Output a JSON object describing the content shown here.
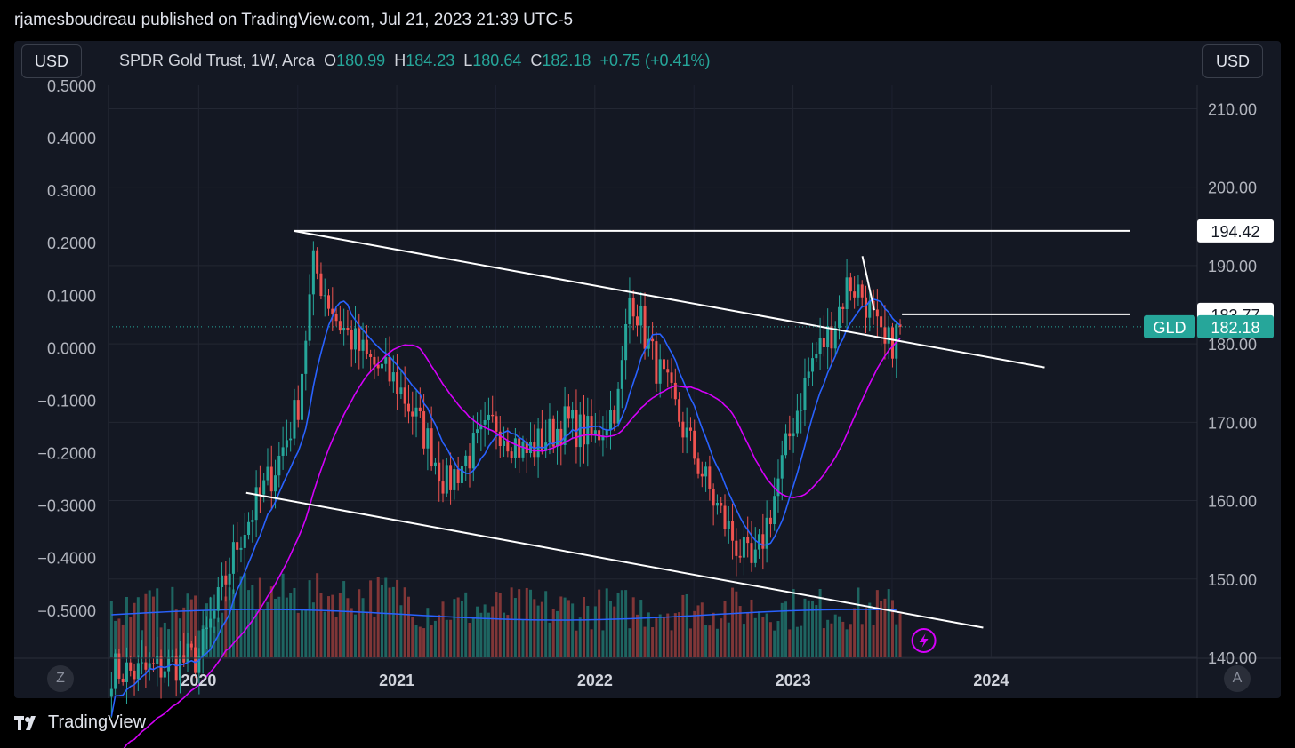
{
  "attribution": "rjamesboudreau published on TradingView.com, Jul 21, 2023 21:39 UTC-5",
  "left_unit": "USD",
  "right_unit": "USD",
  "legend": {
    "symbol": "SPDR Gold Trust, 1W, Arca",
    "o_label": "O",
    "o_value": "180.99",
    "h_label": "H",
    "h_value": "184.23",
    "l_label": "L",
    "l_value": "180.64",
    "c_label": "C",
    "c_value": "182.18",
    "change": "+0.75 (+0.41%)"
  },
  "z_button": "Z",
  "a_button": "A",
  "logo_text": "TradingView",
  "colors": {
    "up": "#26a69a",
    "down": "#ef5350",
    "ma_fast": "#2962ff",
    "ma_slow": "#d500f9",
    "volume_ma": "#2962ff",
    "trendline": "#ffffff",
    "current": "#26a69a"
  },
  "chart_data": {
    "type": "candlestick",
    "interval": "1W",
    "x_ticks": [
      "2020",
      "2021",
      "2022",
      "2023",
      "2024"
    ],
    "y_right_ticks": [
      "210.00",
      "200.00",
      "190.00",
      "180.00",
      "170.00",
      "160.00",
      "150.00",
      "140.00"
    ],
    "y_right_range": [
      140,
      213
    ],
    "y_left_ticks": [
      "0.5000",
      "0.4000",
      "0.3000",
      "0.2000",
      "0.1000",
      "0.0000",
      "−0.1000",
      "−0.2000",
      "−0.3000",
      "−0.4000",
      "−0.5000"
    ],
    "y_left_range": [
      -0.59,
      0.5
    ],
    "price_labels": [
      {
        "text": "194.42",
        "value": 194.42,
        "style": "level"
      },
      {
        "text": "183.77",
        "value": 183.77,
        "style": "level"
      },
      {
        "text": "182.18",
        "value": 182.18,
        "style": "current",
        "tag": "GLD"
      }
    ],
    "grid": true,
    "series": [
      {
        "name": "GLD",
        "kind": "candles",
        "anchors": [
          [
            2019.4,
            139
          ],
          [
            2019.7,
            138
          ],
          [
            2020.0,
            140
          ],
          [
            2020.1,
            147
          ],
          [
            2020.2,
            155
          ],
          [
            2020.3,
            160
          ],
          [
            2020.4,
            165
          ],
          [
            2020.5,
            172
          ],
          [
            2020.58,
            190
          ],
          [
            2020.7,
            183
          ],
          [
            2020.85,
            178
          ],
          [
            2021.0,
            175
          ],
          [
            2021.15,
            168
          ],
          [
            2021.25,
            162
          ],
          [
            2021.4,
            167
          ],
          [
            2021.5,
            170
          ],
          [
            2021.65,
            166
          ],
          [
            2021.85,
            170
          ],
          [
            2022.0,
            168
          ],
          [
            2022.12,
            173
          ],
          [
            2022.18,
            187
          ],
          [
            2022.28,
            179
          ],
          [
            2022.4,
            172
          ],
          [
            2022.5,
            166
          ],
          [
            2022.6,
            160
          ],
          [
            2022.7,
            155
          ],
          [
            2022.8,
            151
          ],
          [
            2022.9,
            160
          ],
          [
            2023.0,
            170
          ],
          [
            2023.1,
            178
          ],
          [
            2023.2,
            182
          ],
          [
            2023.28,
            188
          ],
          [
            2023.36,
            186
          ],
          [
            2023.46,
            179
          ],
          [
            2023.55,
            182.18
          ]
        ]
      },
      {
        "name": "MA fast",
        "kind": "line"
      },
      {
        "name": "MA slow",
        "kind": "line"
      },
      {
        "name": "Volume",
        "kind": "volume"
      }
    ],
    "trendlines": [
      {
        "from": [
          2020.48,
          194.42
        ],
        "to": [
          2024.27,
          177.0
        ]
      },
      {
        "from": [
          2020.24,
          161.0
        ],
        "to": [
          2023.96,
          143.8
        ]
      },
      {
        "from": [
          2020.48,
          194.42
        ],
        "to": [
          2024.7,
          194.42
        ]
      },
      {
        "from": [
          2023.55,
          183.77
        ],
        "to": [
          2024.7,
          183.77
        ]
      },
      {
        "from": [
          2023.35,
          191.2
        ],
        "to": [
          2023.41,
          184.3
        ]
      }
    ]
  }
}
